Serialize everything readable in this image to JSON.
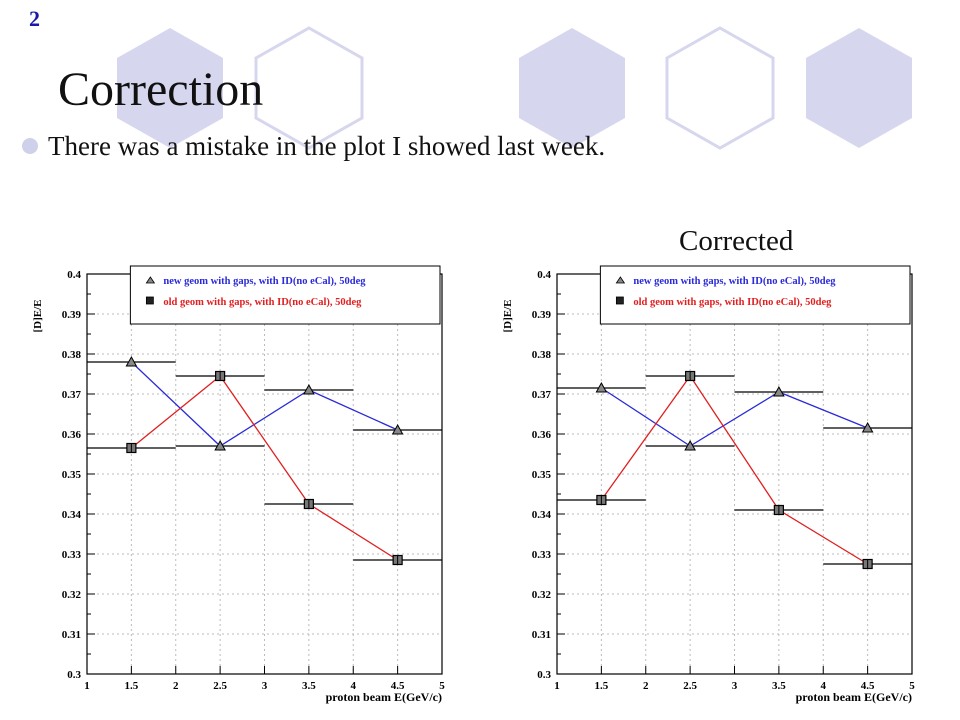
{
  "slide": {
    "number": "2",
    "title": "Correction",
    "bullet": "There was a mistake in the plot I showed last week.",
    "right_caption": "Corrected"
  },
  "colors": {
    "hex_fill": "#d6d7ee",
    "hex_stroke": "#d6d7ee",
    "blue": "#2a2ad8",
    "red": "#e02020",
    "grid": "#bbbbbb"
  },
  "chart_data": [
    {
      "type": "line",
      "title": "",
      "xlabel": "proton beam  E(GeV/c)",
      "ylabel": "[D]E/E",
      "xlim": [
        1,
        5
      ],
      "ylim": [
        0.3,
        0.4
      ],
      "x_ticks": [
        "1",
        "1.5",
        "2",
        "2.5",
        "3",
        "3.5",
        "4",
        "4.5",
        "5"
      ],
      "y_ticks": [
        "0.3",
        "0.31",
        "0.32",
        "0.33",
        "0.34",
        "0.35",
        "0.36",
        "0.37",
        "0.38",
        "0.39",
        "0.4"
      ],
      "grid": true,
      "legend_position": "top-right",
      "x": [
        1.5,
        2.5,
        3.5,
        4.5
      ],
      "series": [
        {
          "name": "new geom with gaps, with ID(no eCal), 50deg",
          "color": "blue",
          "marker": "triangle",
          "values": [
            0.378,
            0.357,
            0.371,
            0.361
          ]
        },
        {
          "name": "old geom with gaps, with ID(no eCal), 50deg",
          "color": "red",
          "marker": "square",
          "values": [
            0.3565,
            0.3745,
            0.3425,
            0.3285
          ]
        }
      ]
    },
    {
      "type": "line",
      "title": "",
      "xlabel": "proton beam  E(GeV/c)",
      "ylabel": "[D]E/E",
      "xlim": [
        1,
        5
      ],
      "ylim": [
        0.3,
        0.4
      ],
      "x_ticks": [
        "1",
        "1.5",
        "2",
        "2.5",
        "3",
        "3.5",
        "4",
        "4.5",
        "5"
      ],
      "y_ticks": [
        "0.3",
        "0.31",
        "0.32",
        "0.33",
        "0.34",
        "0.35",
        "0.36",
        "0.37",
        "0.38",
        "0.39",
        "0.4"
      ],
      "grid": true,
      "legend_position": "top-right",
      "x": [
        1.5,
        2.5,
        3.5,
        4.5
      ],
      "series": [
        {
          "name": "new geom with gaps, with ID(no eCal), 50deg",
          "color": "blue",
          "marker": "triangle",
          "values": [
            0.3715,
            0.357,
            0.3705,
            0.3615
          ]
        },
        {
          "name": "old geom with gaps, with ID(no eCal), 50deg",
          "color": "red",
          "marker": "square",
          "values": [
            0.3435,
            0.3745,
            0.341,
            0.3275
          ]
        }
      ]
    }
  ]
}
